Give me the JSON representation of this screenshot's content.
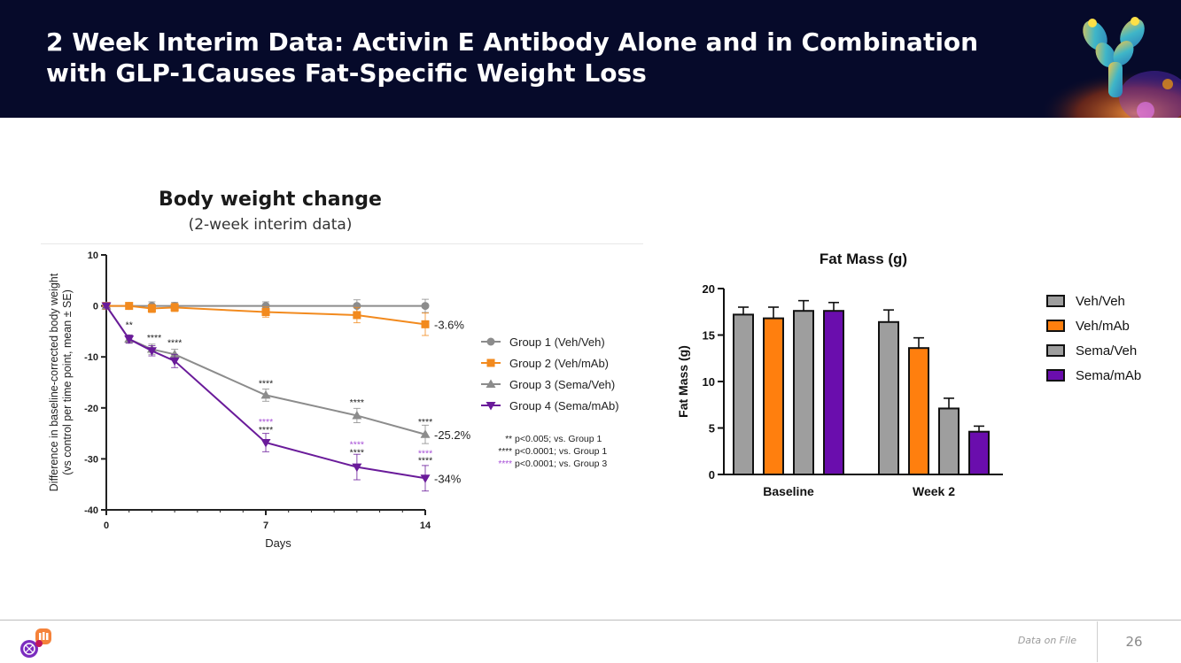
{
  "header": {
    "title": "2 Week Interim Data: Activin E Antibody Alone and in Combination with GLP-1Causes Fat-Specific Weight Loss"
  },
  "footer": {
    "note": "Data on File",
    "page_number": "26"
  },
  "colors": {
    "header_bg": "#060a2a",
    "group1": "#8c8c8c",
    "group2": "#f28a1e",
    "group3": "#8c8c8c",
    "group4": "#6a1b9a",
    "sig_group3": "#a64dd6"
  },
  "chart_data": [
    {
      "type": "line",
      "title": "Body weight change",
      "subtitle": "(2-week interim data)",
      "xlabel": "Days",
      "ylabel_lines": [
        "Difference in baseline-corrected body weight",
        "(vs control per time point, mean ± SE)"
      ],
      "xlim": [
        0,
        14
      ],
      "ylim": [
        -40,
        10
      ],
      "x_ticks": [
        "0",
        "7",
        "14"
      ],
      "y_ticks": [
        "10",
        "0",
        "-10",
        "-20",
        "-30",
        "-40"
      ],
      "series": [
        {
          "name": "Group 1 (Veh/Veh)",
          "color": "#8c8c8c",
          "marker": "circle",
          "x": [
            0,
            1,
            2,
            3,
            7,
            11,
            14
          ],
          "y": [
            0,
            0,
            0,
            0,
            0,
            0,
            0
          ],
          "err": [
            0.4,
            0.6,
            0.8,
            0.7,
            0.8,
            1.2,
            1.3
          ]
        },
        {
          "name": "Group 2 (Veh/mAb)",
          "color": "#f28a1e",
          "marker": "square",
          "x": [
            0,
            1,
            2,
            3,
            7,
            11,
            14
          ],
          "y": [
            0,
            0,
            -0.5,
            -0.3,
            -1.2,
            -1.8,
            -3.6
          ],
          "err": [
            0.4,
            0.6,
            0.8,
            0.8,
            1.0,
            1.5,
            2.2
          ]
        },
        {
          "name": "Group 3 (Sema/Veh)",
          "color": "#8c8c8c",
          "marker": "triangle-up",
          "x": [
            0,
            1,
            2,
            3,
            7,
            11,
            14
          ],
          "y": [
            0,
            -6.5,
            -8.5,
            -9.5,
            -17.5,
            -21.5,
            -25.2
          ],
          "err": [
            0.3,
            0.8,
            1.0,
            1.0,
            1.2,
            1.4,
            1.8
          ]
        },
        {
          "name": "Group 4 (Sema/mAb)",
          "color": "#6a1b9a",
          "marker": "triangle-down",
          "x": [
            0,
            1,
            2,
            3,
            7,
            11,
            14
          ],
          "y": [
            0,
            -6.5,
            -8.8,
            -10.8,
            -26.8,
            -31.6,
            -33.8
          ],
          "err": [
            0.3,
            0.8,
            1.0,
            1.3,
            1.8,
            2.5,
            2.5
          ]
        }
      ],
      "end_labels": [
        {
          "series": 1,
          "text": "-3.6%"
        },
        {
          "series": 2,
          "text": "-25.2%"
        },
        {
          "series": 3,
          "text": "-34%"
        }
      ],
      "annotations": [
        {
          "x": 1,
          "y": -4.3,
          "text": "**",
          "color": "#1a1a1a"
        },
        {
          "x": 2.1,
          "y": -6.8,
          "text": "****",
          "color": "#1a1a1a"
        },
        {
          "x": 3,
          "y": -7.8,
          "text": "****",
          "color": "#1a1a1a"
        },
        {
          "x": 7,
          "y": -15.8,
          "text": "****",
          "color": "#1a1a1a"
        },
        {
          "x": 11,
          "y": -19.5,
          "text": "****",
          "color": "#1a1a1a"
        },
        {
          "x": 14,
          "y": -23.3,
          "text": "****",
          "color": "#1a1a1a"
        },
        {
          "x": 7,
          "y": -23.3,
          "text": "****",
          "color": "#a64dd6"
        },
        {
          "x": 7,
          "y": -24.9,
          "text": "****",
          "color": "#1a1a1a"
        },
        {
          "x": 11,
          "y": -27.8,
          "text": "****",
          "color": "#a64dd6"
        },
        {
          "x": 11,
          "y": -29.3,
          "text": "****",
          "color": "#1a1a1a"
        },
        {
          "x": 14,
          "y": -29.5,
          "text": "****",
          "color": "#a64dd6"
        },
        {
          "x": 14,
          "y": -30.9,
          "text": "****",
          "color": "#1a1a1a"
        }
      ],
      "significance_key": [
        {
          "stars": "**",
          "text": "p<0.005; vs. Group 1",
          "color": "#1a1a1a"
        },
        {
          "stars": "****",
          "text": "p<0.0001; vs. Group 1",
          "color": "#1a1a1a"
        },
        {
          "stars": "****",
          "text": "p<0.0001; vs. Group 3",
          "color": "#a64dd6"
        }
      ],
      "legend_position": "right",
      "grid": false
    },
    {
      "type": "bar",
      "title": "Fat Mass (g)",
      "ylabel": "Fat Mass (g)",
      "xlabel": "",
      "ylim": [
        0,
        20
      ],
      "y_ticks": [
        "0",
        "5",
        "10",
        "15",
        "20"
      ],
      "categories": [
        "Baseline",
        "Week 2"
      ],
      "series": [
        {
          "name": "Veh/Veh",
          "color": "#9e9e9e",
          "values": [
            17.2,
            16.4
          ],
          "err": [
            0.8,
            1.3
          ]
        },
        {
          "name": "Veh/mAb",
          "color": "#ff7f0e",
          "values": [
            16.8,
            13.6
          ],
          "err": [
            1.2,
            1.1
          ]
        },
        {
          "name": "Sema/Veh",
          "color": "#9e9e9e",
          "values": [
            17.6,
            7.1
          ],
          "err": [
            1.1,
            1.1
          ]
        },
        {
          "name": "Sema/mAb",
          "color": "#6a0dad",
          "values": [
            17.6,
            4.6
          ],
          "err": [
            0.9,
            0.6
          ]
        }
      ],
      "legend_position": "right",
      "grid": false
    }
  ]
}
